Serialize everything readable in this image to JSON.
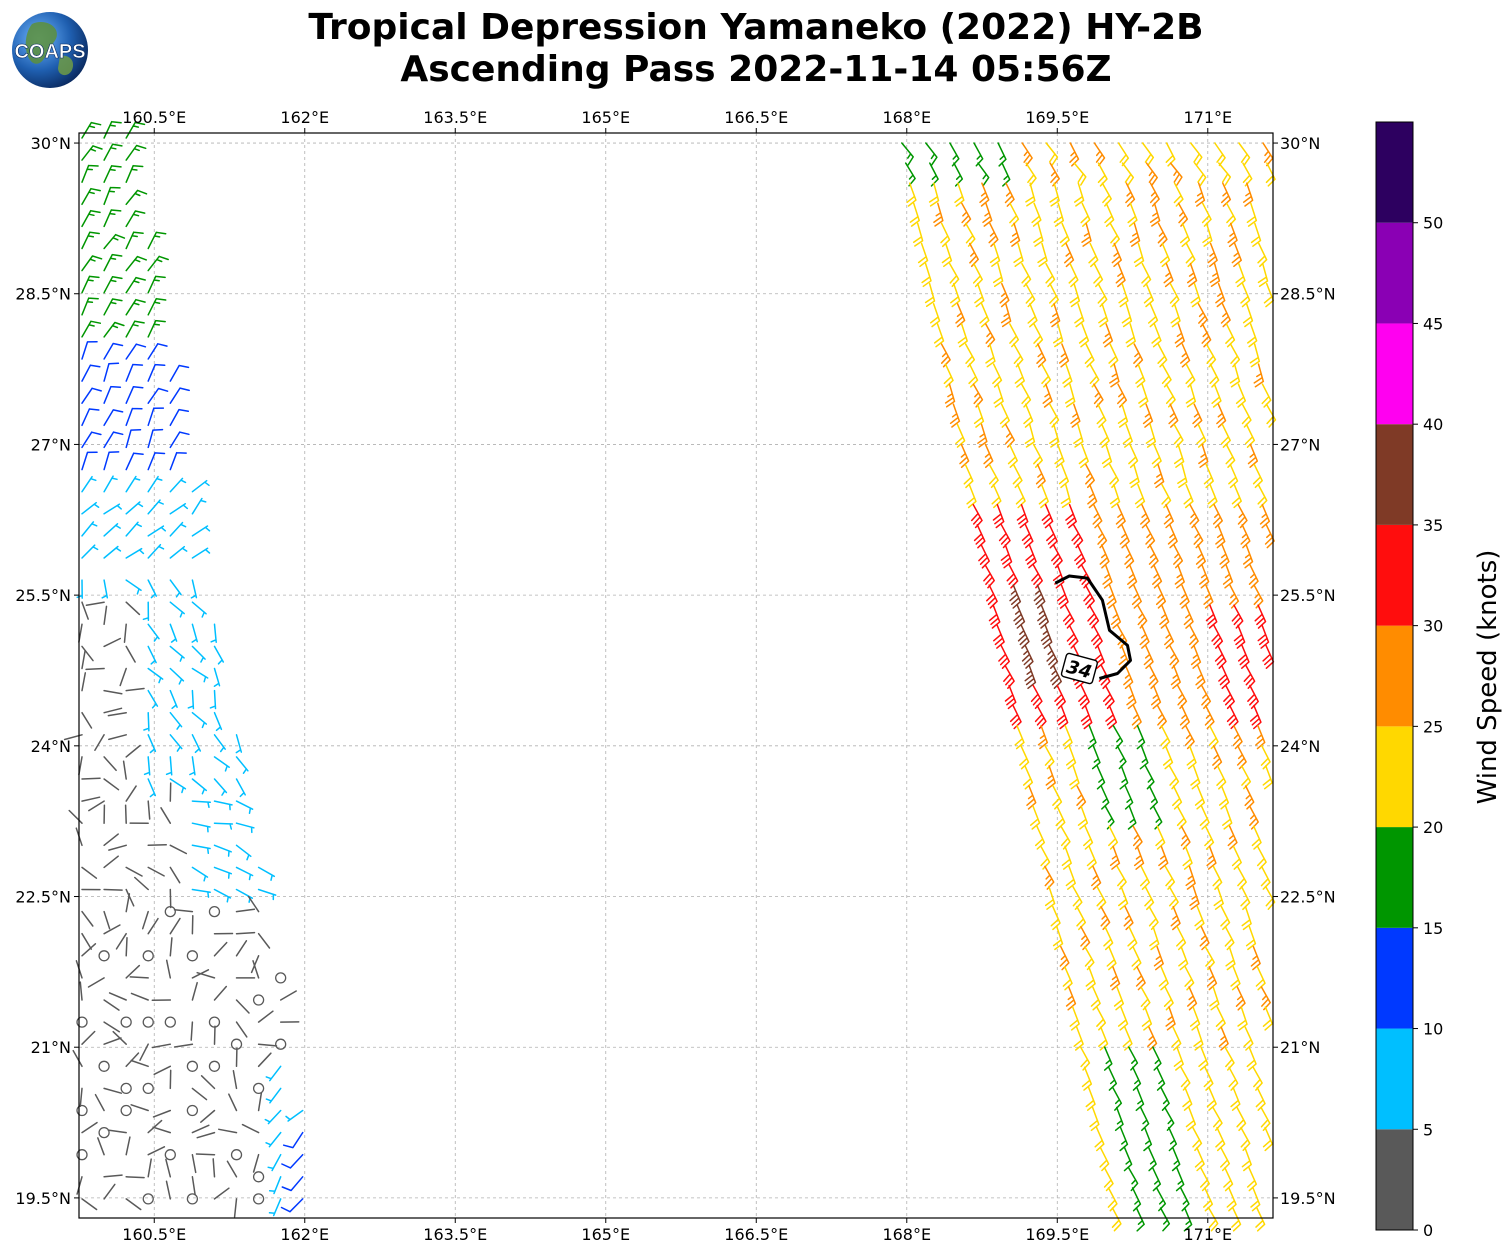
{
  "title": {
    "line1": "Tropical Depression Yamaneko (2022) HY-2B",
    "line2": "Ascending Pass 2022-11-14 05:56Z"
  },
  "logo": {
    "text": "COAPS"
  },
  "map": {
    "lon_range": [
      159.75,
      171.65
    ],
    "lat_range": [
      19.3,
      30.1
    ],
    "lon_ticks": [
      {
        "v": 160.5,
        "label": "160.5°E"
      },
      {
        "v": 162.0,
        "label": "162°E"
      },
      {
        "v": 163.5,
        "label": "163.5°E"
      },
      {
        "v": 165.0,
        "label": "165°E"
      },
      {
        "v": 166.5,
        "label": "166.5°E"
      },
      {
        "v": 168.0,
        "label": "168°E"
      },
      {
        "v": 169.5,
        "label": "169.5°E"
      },
      {
        "v": 171.0,
        "label": "171°E"
      }
    ],
    "lat_ticks": [
      {
        "v": 30.0,
        "label": "30°N"
      },
      {
        "v": 28.5,
        "label": "28.5°N"
      },
      {
        "v": 27.0,
        "label": "27°N"
      },
      {
        "v": 25.5,
        "label": "25.5°N"
      },
      {
        "v": 24.0,
        "label": "24°N"
      },
      {
        "v": 22.5,
        "label": "22.5°N"
      },
      {
        "v": 21.0,
        "label": "21°N"
      },
      {
        "v": 19.5,
        "label": "19.5°N"
      }
    ],
    "grid": true,
    "contour_label": "34"
  },
  "colorbar": {
    "label": "Wind Speed (knots)",
    "bins": [
      {
        "lo": 0,
        "hi": 5,
        "color": "#595959"
      },
      {
        "lo": 5,
        "hi": 10,
        "color": "#00bfff"
      },
      {
        "lo": 10,
        "hi": 15,
        "color": "#0039ff"
      },
      {
        "lo": 15,
        "hi": 20,
        "color": "#009600"
      },
      {
        "lo": 20,
        "hi": 25,
        "color": "#ffd800"
      },
      {
        "lo": 25,
        "hi": 30,
        "color": "#ff8c00"
      },
      {
        "lo": 30,
        "hi": 35,
        "color": "#ff0d0d"
      },
      {
        "lo": 35,
        "hi": 40,
        "color": "#7f3a26"
      },
      {
        "lo": 40,
        "hi": 45,
        "color": "#ff00f0"
      },
      {
        "lo": 45,
        "hi": 50,
        "color": "#8a00b4"
      },
      {
        "lo": 50,
        "hi": 55,
        "color": "#2d0060"
      }
    ],
    "ticks": [
      "0",
      "5",
      "10",
      "15",
      "20",
      "25",
      "30",
      "35",
      "40",
      "45",
      "50"
    ]
  }
}
